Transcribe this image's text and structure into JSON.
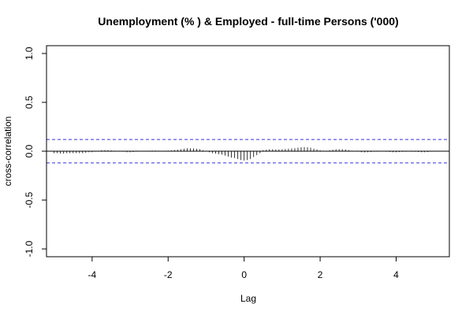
{
  "chart_data": {
    "type": "bar",
    "title": "Unemployment (% ) & Employed - full-time Persons ('000)",
    "xlabel": "Lag",
    "ylabel": "cross-correlation",
    "xlim": [
      -5.2,
      5.4
    ],
    "ylim": [
      -1.08,
      1.08
    ],
    "x_ticks": [
      -4,
      -2,
      0,
      2,
      4
    ],
    "x_tick_labels": [
      "-4",
      "-2",
      "0",
      "2",
      "4"
    ],
    "y_ticks": [
      -1.0,
      -0.5,
      0.0,
      0.5,
      1.0
    ],
    "y_tick_labels": [
      "-1.0",
      "-0.5",
      "0.0",
      "0.5",
      "1.0"
    ],
    "confidence_bound": 0.12,
    "lag_step": 0.0833333,
    "lag_min": -5.0,
    "ccf_values": [
      -0.02,
      -0.02,
      -0.025,
      -0.025,
      -0.02,
      -0.02,
      -0.02,
      -0.02,
      -0.02,
      -0.02,
      -0.015,
      -0.01,
      -0.01,
      -0.005,
      0.005,
      0.01,
      0.01,
      0.01,
      0.008,
      0.005,
      0.003,
      0.0,
      -0.005,
      -0.01,
      -0.01,
      -0.008,
      -0.005,
      -0.003,
      0.0,
      0.003,
      0.005,
      0.006,
      0.006,
      0.005,
      0.004,
      0.005,
      0.006,
      0.008,
      0.012,
      0.015,
      0.02,
      0.025,
      0.03,
      0.03,
      0.028,
      0.025,
      0.02,
      0.01,
      0.0,
      -0.01,
      -0.02,
      -0.025,
      -0.03,
      -0.035,
      -0.045,
      -0.055,
      -0.065,
      -0.07,
      -0.08,
      -0.09,
      -0.095,
      -0.09,
      -0.08,
      -0.06,
      -0.04,
      -0.02,
      0.01,
      0.015,
      0.02,
      0.02,
      0.018,
      0.018,
      0.02,
      0.022,
      0.025,
      0.028,
      0.03,
      0.035,
      0.04,
      0.042,
      0.04,
      0.035,
      0.025,
      0.018,
      0.01,
      0.005,
      0.005,
      0.01,
      0.015,
      0.02,
      0.02,
      0.02,
      0.018,
      0.012,
      0.005,
      0.0,
      -0.005,
      -0.01,
      -0.012,
      -0.01,
      -0.008,
      -0.005,
      -0.005,
      -0.003,
      -0.002,
      -0.005,
      -0.008,
      -0.01,
      -0.01,
      -0.008,
      -0.006,
      -0.005,
      -0.004,
      -0.005,
      -0.006,
      -0.008,
      -0.01,
      -0.01,
      -0.008,
      -0.005,
      -0.005
    ],
    "colors": {
      "ccf_lines": "#000000",
      "zero_line": "#000000",
      "confidence_lines": "#3333dd",
      "frame": "#000000"
    }
  }
}
